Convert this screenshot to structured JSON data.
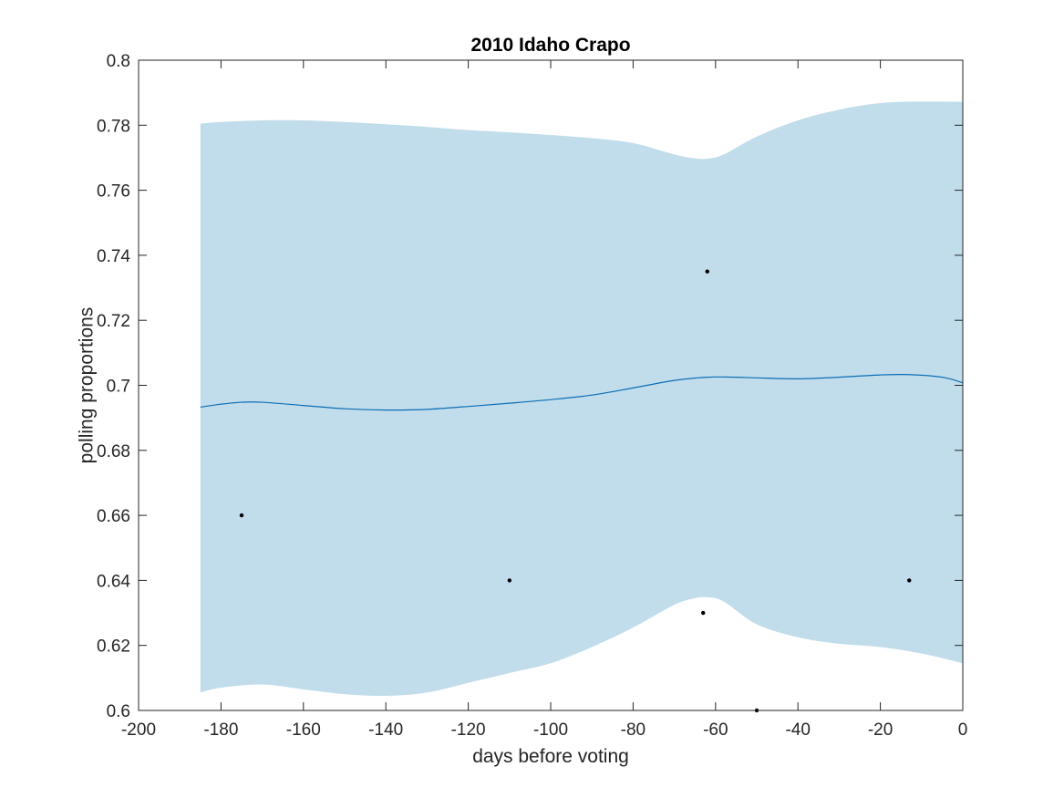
{
  "chart_data": {
    "type": "line",
    "title": "2010 Idaho Crapo",
    "xlabel": "days before voting",
    "ylabel": "polling proportions",
    "xlim": [
      -200,
      0
    ],
    "ylim": [
      0.6,
      0.8
    ],
    "xticks": [
      -200,
      -180,
      -160,
      -140,
      -120,
      -100,
      -80,
      -60,
      -40,
      -20,
      0
    ],
    "yticks": [
      0.6,
      0.62,
      0.64,
      0.66,
      0.68,
      0.7,
      0.72,
      0.74,
      0.76,
      0.78,
      0.8
    ],
    "xtick_labels": [
      "-200",
      "-180",
      "-160",
      "-140",
      "-120",
      "-100",
      "-80",
      "-60",
      "-40",
      "-20",
      "0"
    ],
    "ytick_labels": [
      "0.6",
      "0.62",
      "0.64",
      "0.66",
      "0.68",
      "0.7",
      "0.72",
      "0.74",
      "0.76",
      "0.78",
      "0.8"
    ],
    "grid": false,
    "band": {
      "x": [
        -185,
        -180,
        -170,
        -160,
        -150,
        -140,
        -130,
        -120,
        -110,
        -100,
        -90,
        -80,
        -70,
        -65,
        -62,
        -58,
        -50,
        -40,
        -30,
        -20,
        -10,
        0
      ],
      "upper": [
        0.7805,
        0.781,
        0.7815,
        0.7815,
        0.781,
        0.7803,
        0.7795,
        0.7785,
        0.7778,
        0.777,
        0.776,
        0.7745,
        0.771,
        0.7698,
        0.7697,
        0.771,
        0.7765,
        0.7815,
        0.7848,
        0.7868,
        0.7873,
        0.7872
      ],
      "lower": [
        0.6055,
        0.607,
        0.608,
        0.6065,
        0.605,
        0.6045,
        0.6055,
        0.6085,
        0.6115,
        0.6145,
        0.6195,
        0.6255,
        0.6325,
        0.6345,
        0.6348,
        0.6335,
        0.6265,
        0.6225,
        0.6205,
        0.6195,
        0.6175,
        0.6145
      ],
      "color": "#c1ddeb"
    },
    "series": [
      {
        "x": [
          -185,
          -180,
          -175,
          -170,
          -160,
          -150,
          -140,
          -130,
          -120,
          -110,
          -100,
          -90,
          -80,
          -70,
          -62,
          -55,
          -50,
          -40,
          -30,
          -20,
          -13,
          -5,
          0
        ],
        "y": [
          0.6933,
          0.6942,
          0.6948,
          0.6948,
          0.6938,
          0.6928,
          0.6924,
          0.6926,
          0.6935,
          0.6945,
          0.6956,
          0.697,
          0.6992,
          0.7015,
          0.7025,
          0.7025,
          0.7023,
          0.702,
          0.7025,
          0.7032,
          0.7033,
          0.7025,
          0.7008
        ],
        "color": "#0b6eb5"
      }
    ],
    "points": {
      "x": [
        -175,
        -110,
        -63,
        -62,
        -50,
        -13
      ],
      "y": [
        0.66,
        0.64,
        0.63,
        0.735,
        0.6,
        0.64
      ],
      "color": "#000000"
    }
  }
}
